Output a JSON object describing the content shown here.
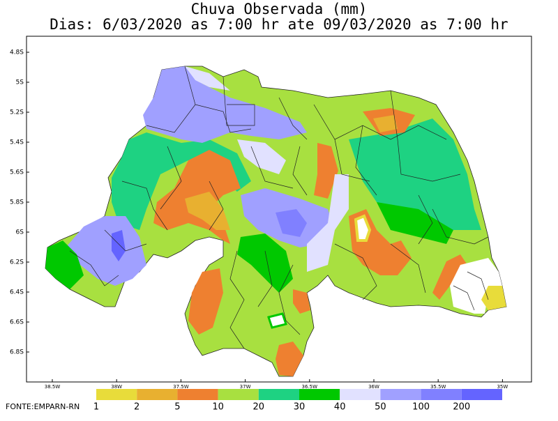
{
  "header": {
    "title": "Chuva Observada (mm)",
    "subtitle": "Dias: 6/03/2020 as 7:00 hr ate 09/03/2020 as 7:00 hr"
  },
  "map": {
    "latitude_labels": [
      "4.8S",
      "5S",
      "5.2S",
      "5.4S",
      "5.6S",
      "5.8S",
      "6S",
      "6.2S",
      "6.4S",
      "6.6S",
      "6.8S"
    ],
    "longitude_labels": [
      "38.5W",
      "38W",
      "37.5W",
      "37W",
      "36.5W",
      "36W",
      "35.5W",
      "35W"
    ]
  },
  "legend": {
    "labels": [
      "1",
      "2",
      "5",
      "10",
      "20",
      "30",
      "40",
      "50",
      "100",
      "200"
    ]
  },
  "source": "FONTE:EMPARN-RN"
}
